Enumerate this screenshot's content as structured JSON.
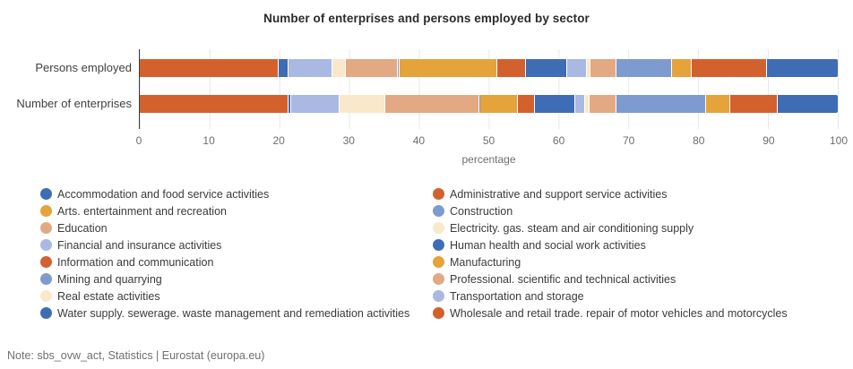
{
  "title": "Number of enterprises and persons employed by sector",
  "note": "Note: sbs_ovw_act, Statistics | Eurostat (europa.eu)",
  "colors": {
    "dark_blue": "#3F6DB5",
    "orange_red": "#D3612E",
    "gold": "#E4A33B",
    "steel_blue": "#7E9BD0",
    "tan": "#E3A982",
    "cream": "#FAE8CA",
    "light_periwinkle": "#AAB9E3",
    "grid_line": "#E7E7E7",
    "axis_line": "#3D3D3D"
  },
  "chart_data": {
    "type": "bar",
    "variant": "horizontal-100pct-stacked",
    "title": "Number of enterprises and persons employed by sector",
    "categories": [
      "Persons employed",
      "Number of enterprises"
    ],
    "xlabel": "percentage",
    "xlim": [
      0,
      100
    ],
    "x_ticks": [
      0,
      10,
      20,
      30,
      40,
      50,
      60,
      70,
      80,
      90,
      100
    ],
    "grid": true,
    "legend_position": "bottom-two-columns",
    "series": [
      {
        "name": "Accommodation and food service activities",
        "color_key": "dark_blue",
        "values": [
          10.3,
          8.8
        ]
      },
      {
        "name": "Administrative and support service activities",
        "color_key": "orange_red",
        "values": [
          10.9,
          6.8
        ]
      },
      {
        "name": "Arts. entertainment and recreation",
        "color_key": "gold",
        "values": [
          2.7,
          3.4
        ]
      },
      {
        "name": "Construction",
        "color_key": "steel_blue",
        "values": [
          8.1,
          13.0
        ]
      },
      {
        "name": "Education",
        "color_key": "tan",
        "values": [
          3.6,
          3.7
        ]
      },
      {
        "name": "Electricity. gas. steam and air conditioning supply",
        "color_key": "cream",
        "values": [
          0.4,
          0.6
        ]
      },
      {
        "name": "Financial and insurance activities",
        "color_key": "light_periwinkle",
        "values": [
          2.8,
          1.3
        ]
      },
      {
        "name": "Human health and social work activities",
        "color_key": "dark_blue",
        "values": [
          5.8,
          5.7
        ]
      },
      {
        "name": "Information and communication",
        "color_key": "orange_red",
        "values": [
          4.1,
          2.4
        ]
      },
      {
        "name": "Manufacturing",
        "color_key": "gold",
        "values": [
          14.1,
          5.3
        ]
      },
      {
        "name": "Mining and quarrying",
        "color_key": "steel_blue",
        "values": [
          0.1,
          0.1
        ]
      },
      {
        "name": "Professional. scientific and technical activities",
        "color_key": "tan",
        "values": [
          7.5,
          13.6
        ]
      },
      {
        "name": "Real estate activities",
        "color_key": "cream",
        "values": [
          1.8,
          6.5
        ]
      },
      {
        "name": "Transportation and storage",
        "color_key": "light_periwinkle",
        "values": [
          6.3,
          6.9
        ]
      },
      {
        "name": "Water supply. sewerage. waste management and remediation activities",
        "color_key": "dark_blue",
        "values": [
          1.4,
          0.3
        ]
      },
      {
        "name": "Wholesale and retail trade. repair of motor vehicles and motorcycles",
        "color_key": "orange_red",
        "values": [
          20.1,
          21.6
        ]
      }
    ],
    "stack_order": [
      "Wholesale and retail trade. repair of motor vehicles and motorcycles",
      "Water supply. sewerage. waste management and remediation activities",
      "Transportation and storage",
      "Real estate activities",
      "Professional. scientific and technical activities",
      "Mining and quarrying",
      "Manufacturing",
      "Information and communication",
      "Human health and social work activities",
      "Financial and insurance activities",
      "Electricity. gas. steam and air conditioning supply",
      "Education",
      "Construction",
      "Arts. entertainment and recreation",
      "Administrative and support service activities",
      "Accommodation and food service activities"
    ]
  }
}
